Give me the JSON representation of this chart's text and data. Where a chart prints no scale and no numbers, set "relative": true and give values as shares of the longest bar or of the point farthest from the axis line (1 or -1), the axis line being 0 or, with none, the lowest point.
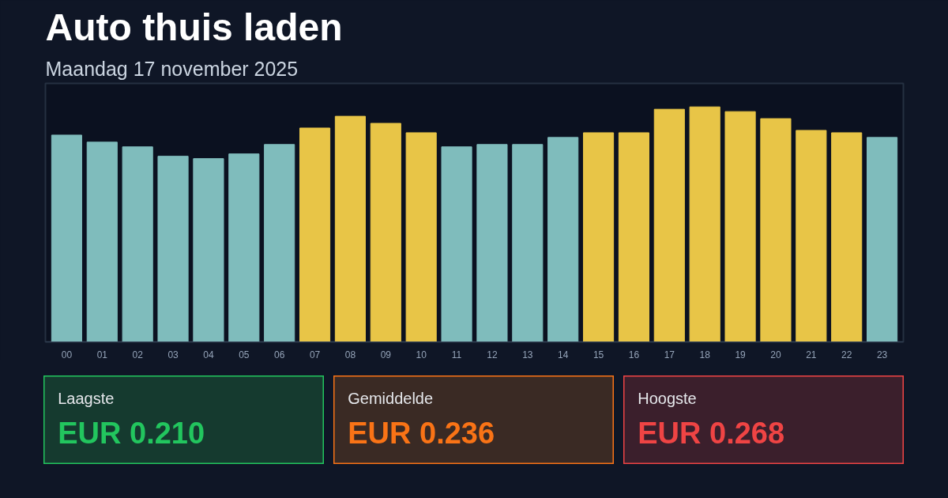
{
  "chart_data": [
    {
      "type": "bar",
      "title": "Auto thuis laden",
      "subtitle": "Maandag 17 november 2025",
      "relative": true,
      "categories": [
        "00",
        "01",
        "02",
        "03",
        "04",
        "05",
        "06",
        "07",
        "08",
        "09",
        "10",
        "11",
        "12",
        "13",
        "14",
        "15",
        "16",
        "17",
        "18",
        "19",
        "20",
        "21",
        "22",
        "23"
      ],
      "values": [
        0.88,
        0.85,
        0.83,
        0.79,
        0.78,
        0.8,
        0.84,
        0.91,
        0.96,
        0.93,
        0.89,
        0.83,
        0.84,
        0.84,
        0.87,
        0.89,
        0.89,
        0.99,
        1.0,
        0.98,
        0.95,
        0.9,
        0.89,
        0.87
      ],
      "colors": [
        "#7fbcbc",
        "#7fbcbc",
        "#7fbcbc",
        "#7fbcbc",
        "#7fbcbc",
        "#7fbcbc",
        "#7fbcbc",
        "#e8c547",
        "#e8c547",
        "#e8c547",
        "#e8c547",
        "#7fbcbc",
        "#7fbcbc",
        "#7fbcbc",
        "#7fbcbc",
        "#e8c547",
        "#e8c547",
        "#e8c547",
        "#e8c547",
        "#e8c547",
        "#e8c547",
        "#e8c547",
        "#e8c547",
        "#7fbcbc"
      ],
      "grid": false
    },
    {
      "type": "other",
      "title": "Laagste",
      "annotations": [
        "EUR 0.210"
      ]
    },
    {
      "type": "other",
      "title": "Gemiddelde",
      "annotations": [
        "EUR 0.236"
      ]
    },
    {
      "type": "other",
      "title": "Hoogste",
      "annotations": [
        "EUR 0.268"
      ]
    }
  ]
}
